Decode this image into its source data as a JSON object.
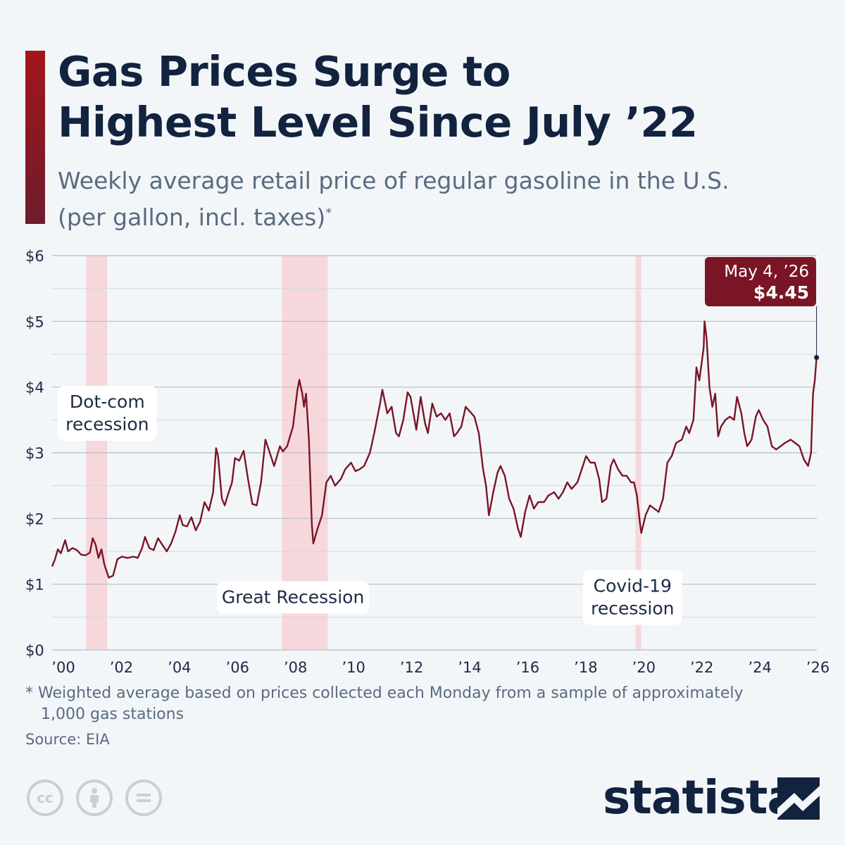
{
  "header": {
    "title_line1": "Gas Prices Surge to",
    "title_line2": "Highest Level Since July ’22",
    "subtitle_line1": "Weekly average retail price of regular gasoline in the U.S.",
    "subtitle_line2": "(per gallon, incl. taxes)",
    "subtitle_mark": "*"
  },
  "chart_data": {
    "type": "line",
    "title": "Gas Prices Surge to Highest Level Since July ’22",
    "ylabel": "",
    "xlabel": "",
    "ylim": [
      0,
      6
    ],
    "xlim": [
      2000,
      2026.35
    ],
    "y_ticks": [
      {
        "value": 0,
        "label": "$0"
      },
      {
        "value": 1,
        "label": "$1"
      },
      {
        "value": 2,
        "label": "$2"
      },
      {
        "value": 3,
        "label": "$3"
      },
      {
        "value": 4,
        "label": "$4"
      },
      {
        "value": 5,
        "label": "$5"
      },
      {
        "value": 6,
        "label": "$6"
      }
    ],
    "x_ticks": [
      {
        "value": 2000,
        "label": "’00"
      },
      {
        "value": 2002,
        "label": "’02"
      },
      {
        "value": 2004,
        "label": "’04"
      },
      {
        "value": 2006,
        "label": "’06"
      },
      {
        "value": 2008,
        "label": "’08"
      },
      {
        "value": 2010,
        "label": "’10"
      },
      {
        "value": 2012,
        "label": "’12"
      },
      {
        "value": 2014,
        "label": "’14"
      },
      {
        "value": 2016,
        "label": "’16"
      },
      {
        "value": 2018,
        "label": "’18"
      },
      {
        "value": 2020,
        "label": "’20"
      },
      {
        "value": 2022,
        "label": "’22"
      },
      {
        "value": 2024,
        "label": "’24"
      },
      {
        "value": 2026,
        "label": "’26"
      }
    ],
    "recessions": [
      {
        "start": 2001.17,
        "end": 2001.9,
        "label_lines": [
          "Dot-com",
          "recession"
        ],
        "label_x": 2001.9,
        "label_y": 3.6
      },
      {
        "start": 2007.92,
        "end": 2009.5,
        "label_lines": [
          "Great Recession"
        ],
        "label_x": 2008.3,
        "label_y": 0.8
      },
      {
        "start": 2020.1,
        "end": 2020.3,
        "label_lines": [
          "Covid-19",
          "recession"
        ],
        "label_x": 2020.0,
        "label_y": 0.8
      }
    ],
    "series": [
      {
        "color": "#7a1526",
        "points": [
          [
            2000.0,
            1.27
          ],
          [
            2000.1,
            1.38
          ],
          [
            2000.2,
            1.53
          ],
          [
            2000.3,
            1.47
          ],
          [
            2000.45,
            1.67
          ],
          [
            2000.55,
            1.5
          ],
          [
            2000.7,
            1.55
          ],
          [
            2000.85,
            1.52
          ],
          [
            2001.0,
            1.45
          ],
          [
            2001.15,
            1.44
          ],
          [
            2001.3,
            1.48
          ],
          [
            2001.4,
            1.7
          ],
          [
            2001.5,
            1.6
          ],
          [
            2001.6,
            1.4
          ],
          [
            2001.7,
            1.53
          ],
          [
            2001.8,
            1.3
          ],
          [
            2001.95,
            1.1
          ],
          [
            2002.1,
            1.13
          ],
          [
            2002.25,
            1.38
          ],
          [
            2002.4,
            1.42
          ],
          [
            2002.6,
            1.4
          ],
          [
            2002.8,
            1.42
          ],
          [
            2002.95,
            1.4
          ],
          [
            2003.1,
            1.55
          ],
          [
            2003.2,
            1.72
          ],
          [
            2003.35,
            1.55
          ],
          [
            2003.5,
            1.52
          ],
          [
            2003.65,
            1.7
          ],
          [
            2003.8,
            1.6
          ],
          [
            2003.95,
            1.5
          ],
          [
            2004.1,
            1.62
          ],
          [
            2004.25,
            1.8
          ],
          [
            2004.4,
            2.05
          ],
          [
            2004.5,
            1.9
          ],
          [
            2004.65,
            1.88
          ],
          [
            2004.8,
            2.02
          ],
          [
            2004.95,
            1.82
          ],
          [
            2005.1,
            1.95
          ],
          [
            2005.25,
            2.25
          ],
          [
            2005.4,
            2.12
          ],
          [
            2005.55,
            2.4
          ],
          [
            2005.65,
            3.07
          ],
          [
            2005.72,
            2.95
          ],
          [
            2005.85,
            2.3
          ],
          [
            2005.95,
            2.2
          ],
          [
            2006.05,
            2.35
          ],
          [
            2006.2,
            2.55
          ],
          [
            2006.3,
            2.92
          ],
          [
            2006.45,
            2.88
          ],
          [
            2006.6,
            3.03
          ],
          [
            2006.75,
            2.6
          ],
          [
            2006.9,
            2.22
          ],
          [
            2007.05,
            2.2
          ],
          [
            2007.2,
            2.55
          ],
          [
            2007.35,
            3.2
          ],
          [
            2007.5,
            3.0
          ],
          [
            2007.65,
            2.8
          ],
          [
            2007.85,
            3.1
          ],
          [
            2007.95,
            3.02
          ],
          [
            2008.1,
            3.1
          ],
          [
            2008.3,
            3.4
          ],
          [
            2008.45,
            3.95
          ],
          [
            2008.52,
            4.11
          ],
          [
            2008.62,
            3.9
          ],
          [
            2008.68,
            3.7
          ],
          [
            2008.75,
            3.9
          ],
          [
            2008.85,
            3.2
          ],
          [
            2008.95,
            1.9
          ],
          [
            2009.0,
            1.62
          ],
          [
            2009.15,
            1.85
          ],
          [
            2009.3,
            2.05
          ],
          [
            2009.45,
            2.55
          ],
          [
            2009.6,
            2.65
          ],
          [
            2009.75,
            2.5
          ],
          [
            2009.95,
            2.6
          ],
          [
            2010.1,
            2.75
          ],
          [
            2010.3,
            2.85
          ],
          [
            2010.45,
            2.72
          ],
          [
            2010.6,
            2.75
          ],
          [
            2010.75,
            2.8
          ],
          [
            2010.95,
            3.0
          ],
          [
            2011.1,
            3.3
          ],
          [
            2011.3,
            3.75
          ],
          [
            2011.38,
            3.96
          ],
          [
            2011.55,
            3.6
          ],
          [
            2011.7,
            3.7
          ],
          [
            2011.85,
            3.3
          ],
          [
            2011.95,
            3.25
          ],
          [
            2012.1,
            3.5
          ],
          [
            2012.25,
            3.92
          ],
          [
            2012.35,
            3.85
          ],
          [
            2012.55,
            3.35
          ],
          [
            2012.7,
            3.85
          ],
          [
            2012.85,
            3.45
          ],
          [
            2012.95,
            3.3
          ],
          [
            2013.1,
            3.75
          ],
          [
            2013.25,
            3.55
          ],
          [
            2013.4,
            3.6
          ],
          [
            2013.55,
            3.5
          ],
          [
            2013.7,
            3.6
          ],
          [
            2013.85,
            3.25
          ],
          [
            2013.95,
            3.3
          ],
          [
            2014.1,
            3.4
          ],
          [
            2014.25,
            3.7
          ],
          [
            2014.35,
            3.65
          ],
          [
            2014.55,
            3.55
          ],
          [
            2014.7,
            3.3
          ],
          [
            2014.85,
            2.75
          ],
          [
            2014.95,
            2.5
          ],
          [
            2015.05,
            2.05
          ],
          [
            2015.2,
            2.4
          ],
          [
            2015.35,
            2.7
          ],
          [
            2015.45,
            2.8
          ],
          [
            2015.6,
            2.65
          ],
          [
            2015.75,
            2.3
          ],
          [
            2015.9,
            2.15
          ],
          [
            2016.05,
            1.85
          ],
          [
            2016.15,
            1.72
          ],
          [
            2016.3,
            2.1
          ],
          [
            2016.45,
            2.35
          ],
          [
            2016.6,
            2.15
          ],
          [
            2016.75,
            2.25
          ],
          [
            2016.95,
            2.25
          ],
          [
            2017.1,
            2.35
          ],
          [
            2017.3,
            2.4
          ],
          [
            2017.45,
            2.3
          ],
          [
            2017.6,
            2.4
          ],
          [
            2017.75,
            2.55
          ],
          [
            2017.9,
            2.45
          ],
          [
            2018.1,
            2.55
          ],
          [
            2018.25,
            2.75
          ],
          [
            2018.4,
            2.95
          ],
          [
            2018.55,
            2.85
          ],
          [
            2018.7,
            2.85
          ],
          [
            2018.85,
            2.6
          ],
          [
            2018.95,
            2.25
          ],
          [
            2019.1,
            2.3
          ],
          [
            2019.25,
            2.8
          ],
          [
            2019.35,
            2.9
          ],
          [
            2019.5,
            2.75
          ],
          [
            2019.65,
            2.65
          ],
          [
            2019.8,
            2.65
          ],
          [
            2019.95,
            2.55
          ],
          [
            2020.05,
            2.55
          ],
          [
            2020.15,
            2.35
          ],
          [
            2020.25,
            1.95
          ],
          [
            2020.3,
            1.78
          ],
          [
            2020.45,
            2.05
          ],
          [
            2020.6,
            2.2
          ],
          [
            2020.75,
            2.15
          ],
          [
            2020.9,
            2.1
          ],
          [
            2021.05,
            2.3
          ],
          [
            2021.2,
            2.85
          ],
          [
            2021.35,
            2.95
          ],
          [
            2021.5,
            3.15
          ],
          [
            2021.7,
            3.2
          ],
          [
            2021.85,
            3.4
          ],
          [
            2021.95,
            3.3
          ],
          [
            2022.1,
            3.5
          ],
          [
            2022.2,
            4.3
          ],
          [
            2022.3,
            4.1
          ],
          [
            2022.45,
            4.6
          ],
          [
            2022.48,
            5.0
          ],
          [
            2022.55,
            4.75
          ],
          [
            2022.65,
            4.0
          ],
          [
            2022.75,
            3.7
          ],
          [
            2022.85,
            3.9
          ],
          [
            2022.95,
            3.25
          ],
          [
            2023.05,
            3.4
          ],
          [
            2023.2,
            3.5
          ],
          [
            2023.35,
            3.55
          ],
          [
            2023.5,
            3.5
          ],
          [
            2023.6,
            3.85
          ],
          [
            2023.75,
            3.6
          ],
          [
            2023.85,
            3.3
          ],
          [
            2023.95,
            3.1
          ],
          [
            2024.1,
            3.2
          ],
          [
            2024.25,
            3.55
          ],
          [
            2024.35,
            3.65
          ],
          [
            2024.5,
            3.5
          ],
          [
            2024.65,
            3.4
          ],
          [
            2024.8,
            3.1
          ],
          [
            2024.95,
            3.05
          ],
          [
            2025.1,
            3.1
          ],
          [
            2025.25,
            3.15
          ],
          [
            2025.45,
            3.2
          ],
          [
            2025.6,
            3.15
          ],
          [
            2025.75,
            3.1
          ],
          [
            2025.9,
            2.9
          ],
          [
            2026.05,
            2.8
          ],
          [
            2026.15,
            3.0
          ],
          [
            2026.22,
            3.9
          ],
          [
            2026.28,
            4.1
          ],
          [
            2026.34,
            4.45
          ]
        ]
      }
    ],
    "callout": {
      "date": "May 4, ’26",
      "value_label": "$4.45",
      "x": 2026.34,
      "y": 4.45
    }
  },
  "footer": {
    "footnote_line1": "* Weighted average based on prices collected each Monday from a sample of approximately",
    "footnote_line2": "1,000 gas stations",
    "source": "Source: EIA",
    "brand": "statista",
    "cc_icons": [
      "cc-icon",
      "attribution-icon",
      "no-derivatives-icon"
    ],
    "cc_label": "cc"
  },
  "colors": {
    "line": "#7a1526",
    "recession": "#f7cdd1",
    "callout": "#7a1526",
    "title": "#12233f",
    "grid": "#c5cbd2"
  }
}
